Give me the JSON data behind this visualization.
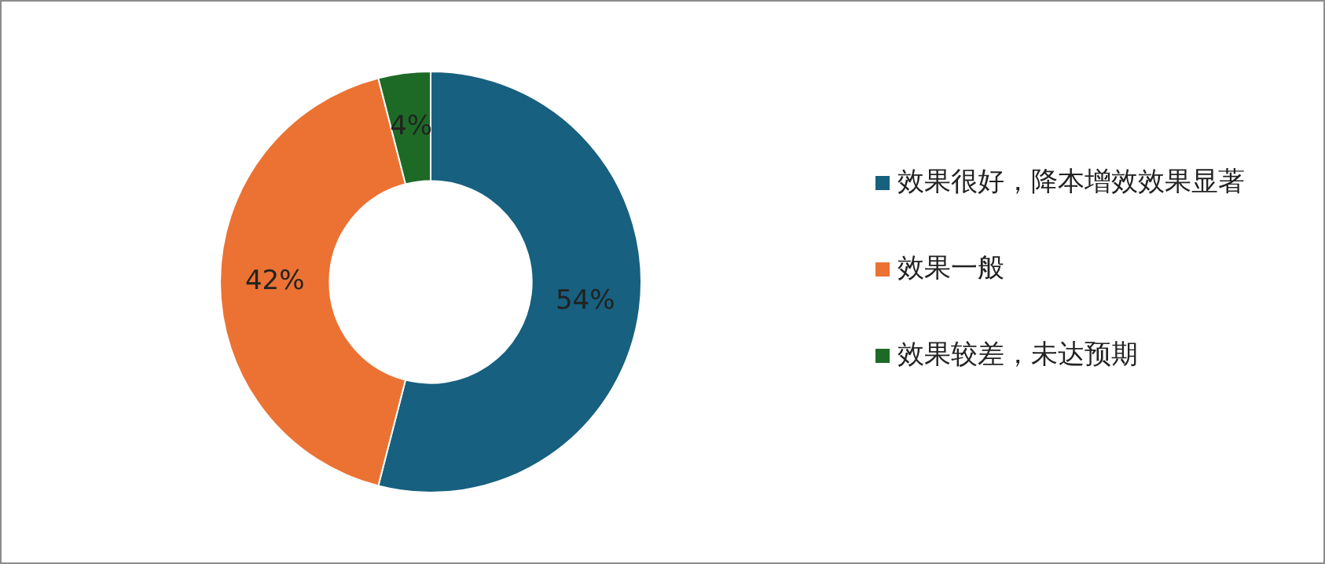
{
  "chart_data": {
    "type": "donut",
    "categories": [
      "效果很好，降本增效效果显著",
      "效果一般",
      "效果较差，未达预期"
    ],
    "values": [
      54,
      42,
      4
    ],
    "colors": [
      "#17607f",
      "#eb7233",
      "#1d6a26"
    ],
    "value_labels": [
      "54%",
      "42%",
      "4%"
    ],
    "legend": "right"
  }
}
